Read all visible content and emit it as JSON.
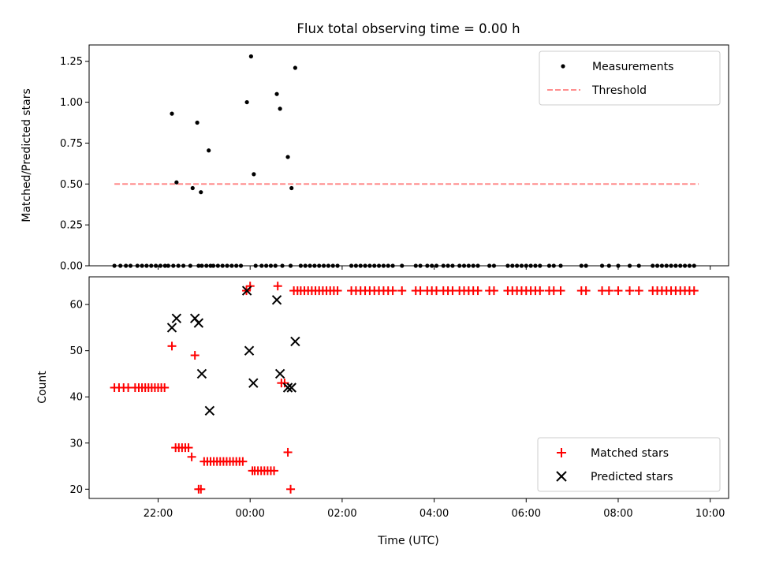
{
  "chart_data": [
    {
      "type": "scatter",
      "title": "Flux total observing time = 0.00 h",
      "xlabel": "",
      "ylabel": "Matched/Predicted stars",
      "ylim": [
        0.0,
        1.35
      ],
      "yticks": [
        "0.00",
        "0.25",
        "0.50",
        "0.75",
        "1.00",
        "1.25"
      ],
      "ytick_values": [
        0,
        0.25,
        0.5,
        0.75,
        1.0,
        1.25
      ],
      "xlim_hours": [
        -3.5,
        10.4
      ],
      "legend_position": "upper right",
      "series": [
        {
          "name": "Measurements",
          "color": "#000000",
          "marker": "dot",
          "x": [
            -2.95,
            -2.82,
            -2.7,
            -2.6,
            -2.45,
            -2.35,
            -2.25,
            -2.15,
            -2.05,
            -1.95,
            -1.85,
            -1.78,
            -1.67,
            -1.56,
            -1.45,
            -1.3,
            -1.12,
            -1.05,
            -0.95,
            -0.86,
            -0.8,
            -0.7,
            -0.6,
            -0.5,
            -0.4,
            -0.3,
            -0.2,
            0.12,
            0.25,
            0.35,
            0.45,
            0.55,
            0.7,
            0.88,
            1.1,
            1.2,
            1.3,
            1.4,
            1.5,
            1.6,
            1.7,
            1.8,
            1.9,
            2.2,
            2.3,
            2.4,
            2.5,
            2.6,
            2.7,
            2.8,
            2.9,
            3.0,
            3.1,
            3.3,
            3.6,
            3.7,
            3.85,
            3.95,
            4.05,
            4.2,
            4.3,
            4.4,
            4.55,
            4.65,
            4.75,
            4.85,
            4.95,
            5.2,
            5.3,
            5.6,
            5.7,
            5.8,
            5.9,
            6.0,
            6.1,
            6.2,
            6.3,
            6.5,
            6.6,
            6.75,
            7.2,
            7.3,
            7.65,
            7.8,
            8.0,
            8.25,
            8.45,
            8.75,
            8.85,
            8.95,
            9.05,
            9.15,
            9.25,
            9.35,
            9.45,
            9.55,
            9.65,
            -1.7,
            -1.6,
            -1.25,
            -1.15,
            -1.07,
            -0.9,
            -0.07,
            0.02,
            0.08,
            0.58,
            0.65,
            0.82,
            0.9,
            0.98
          ],
          "y": [
            0,
            0,
            0,
            0,
            0,
            0,
            0,
            0,
            0,
            0,
            0,
            0,
            0,
            0,
            0,
            0,
            0,
            0,
            0,
            0,
            0,
            0,
            0,
            0,
            0,
            0,
            0,
            0,
            0,
            0,
            0,
            0,
            0,
            0,
            0,
            0,
            0,
            0,
            0,
            0,
            0,
            0,
            0,
            0,
            0,
            0,
            0,
            0,
            0,
            0,
            0,
            0,
            0,
            0,
            0,
            0,
            0,
            0,
            0,
            0,
            0,
            0,
            0,
            0,
            0,
            0,
            0,
            0,
            0,
            0,
            0,
            0,
            0,
            0,
            0,
            0,
            0,
            0,
            0,
            0,
            0,
            0,
            0,
            0,
            0,
            0,
            0,
            0,
            0,
            0,
            0,
            0,
            0,
            0,
            0,
            0,
            0,
            0.93,
            0.51,
            0.475,
            0.875,
            0.45,
            0.705,
            1.0,
            1.28,
            0.56,
            1.05,
            0.96,
            0.665,
            0.475,
            1.21
          ]
        },
        {
          "name": "Threshold",
          "color": "#ff7f7f",
          "style": "dashed",
          "x": [
            -2.95,
            9.75
          ],
          "y": [
            0.5,
            0.5
          ]
        }
      ]
    },
    {
      "type": "scatter",
      "title": "",
      "xlabel": "Time (UTC)",
      "ylabel": "Count",
      "ylim": [
        18,
        66
      ],
      "yticks": [
        "20",
        "30",
        "40",
        "50",
        "60"
      ],
      "ytick_values": [
        20,
        30,
        40,
        50,
        60
      ],
      "xlim_hours": [
        -3.5,
        10.4
      ],
      "xticks": [
        "22:00",
        "00:00",
        "02:00",
        "04:00",
        "06:00",
        "08:00",
        "10:00"
      ],
      "xtick_values": [
        -2,
        0,
        2,
        4,
        6,
        8,
        10
      ],
      "legend_position": "lower right",
      "series": [
        {
          "name": "Matched stars",
          "color": "#ff0000",
          "marker": "plus",
          "x": [
            -2.95,
            -2.85,
            -2.75,
            -2.65,
            -2.5,
            -2.42,
            -2.35,
            -2.28,
            -2.21,
            -2.14,
            -2.07,
            -2.0,
            -1.93,
            -1.86,
            -1.7,
            -1.62,
            -1.55,
            -1.48,
            -1.41,
            -1.34,
            -1.27,
            -1.2,
            -1.12,
            -1.07,
            -1.0,
            -0.93,
            -0.86,
            -0.79,
            -0.72,
            -0.65,
            -0.58,
            -0.51,
            -0.44,
            -0.37,
            -0.3,
            -0.23,
            -0.16,
            -0.08,
            0.0,
            0.05,
            0.1,
            0.17,
            0.24,
            0.31,
            0.38,
            0.45,
            0.52,
            0.6,
            0.68,
            0.75,
            0.82,
            0.88,
            0.95,
            1.03,
            1.1,
            1.18,
            1.26,
            1.34,
            1.42,
            1.5,
            1.58,
            1.66,
            1.74,
            1.82,
            1.9,
            2.2,
            2.3,
            2.4,
            2.5,
            2.6,
            2.7,
            2.8,
            2.9,
            3.0,
            3.1,
            3.3,
            3.6,
            3.7,
            3.85,
            3.95,
            4.05,
            4.2,
            4.3,
            4.4,
            4.55,
            4.65,
            4.75,
            4.85,
            4.95,
            5.2,
            5.3,
            5.6,
            5.7,
            5.8,
            5.9,
            6.0,
            6.1,
            6.2,
            6.3,
            6.5,
            6.6,
            6.75,
            7.2,
            7.3,
            7.65,
            7.8,
            8.0,
            8.25,
            8.45,
            8.75,
            8.85,
            8.95,
            9.05,
            9.15,
            9.25,
            9.35,
            9.45,
            9.55,
            9.65
          ],
          "y": [
            42,
            42,
            42,
            42,
            42,
            42,
            42,
            42,
            42,
            42,
            42,
            42,
            42,
            42,
            51,
            29,
            29,
            29,
            29,
            29,
            27,
            49,
            20,
            20,
            26,
            26,
            26,
            26,
            26,
            26,
            26,
            26,
            26,
            26,
            26,
            26,
            26,
            63,
            64,
            24,
            24,
            24,
            24,
            24,
            24,
            24,
            24,
            64,
            43,
            43,
            28,
            20,
            63,
            63,
            63,
            63,
            63,
            63,
            63,
            63,
            63,
            63,
            63,
            63,
            63,
            63,
            63,
            63,
            63,
            63,
            63,
            63,
            63,
            63,
            63,
            63,
            63,
            63,
            63,
            63,
            63,
            63,
            63,
            63,
            63,
            63,
            63,
            63,
            63,
            63,
            63,
            63,
            63,
            63,
            63,
            63,
            63,
            63,
            63,
            63,
            63,
            63,
            63,
            63,
            63,
            63,
            63,
            63,
            63,
            63,
            63,
            63,
            63,
            63,
            63,
            63,
            63,
            63,
            63
          ]
        },
        {
          "name": "Predicted stars",
          "color": "#000000",
          "marker": "x",
          "x": [
            -1.7,
            -1.6,
            -1.2,
            -1.12,
            -1.05,
            -0.88,
            -0.07,
            -0.02,
            0.07,
            0.58,
            0.65,
            0.82,
            0.9,
            0.98
          ],
          "y": [
            55,
            57,
            57,
            56,
            45,
            37,
            63,
            50,
            43,
            61,
            45,
            42,
            42,
            52
          ]
        }
      ]
    }
  ]
}
